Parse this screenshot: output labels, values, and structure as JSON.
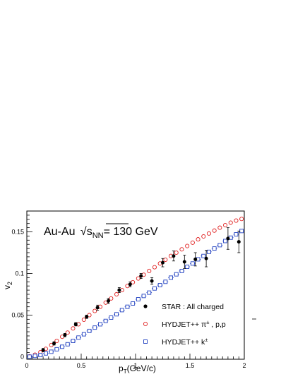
{
  "chart_data": {
    "type": "scatter",
    "title": "Au-Au √s_NN= 130 GeV",
    "title_parts": {
      "system": "Au-Au",
      "sqrt": "√",
      "s": "s",
      "sub": "NN",
      "rest": "= 130 GeV"
    },
    "xlabel": "p_T(GeV/c)",
    "xlabel_parts": {
      "p": "p",
      "sub": "T",
      "rest": "(GeV/c)"
    },
    "ylabel": "v_2",
    "ylabel_parts": {
      "v": "v",
      "sub": "2"
    },
    "xlim": [
      0,
      2
    ],
    "ylim": [
      -0.003,
      0.175
    ],
    "x_ticks": [
      {
        "value": 0,
        "label": "0"
      },
      {
        "value": 0.5,
        "label": "0.5"
      },
      {
        "value": 1,
        "label": "1"
      },
      {
        "value": 1.5,
        "label": "1.5"
      },
      {
        "value": 2,
        "label": "2"
      }
    ],
    "y_ticks": [
      {
        "value": 0,
        "label": "0"
      },
      {
        "value": 0.05,
        "label": "0.05"
      },
      {
        "value": 0.1,
        "label": "0.1"
      },
      {
        "value": 0.15,
        "label": "0.15"
      }
    ],
    "legend_position": "bottom-right",
    "series": [
      {
        "name": "STAR : All charged",
        "marker": "filled-circle",
        "color": "#000000",
        "x": [
          0.15,
          0.25,
          0.35,
          0.45,
          0.55,
          0.65,
          0.75,
          0.85,
          0.95,
          1.05,
          1.15,
          1.25,
          1.35,
          1.45,
          1.55,
          1.65,
          1.85,
          1.95
        ],
        "y": [
          0.008,
          0.016,
          0.026,
          0.039,
          0.048,
          0.059,
          0.067,
          0.08,
          0.087,
          0.097,
          0.091,
          0.113,
          0.121,
          0.114,
          0.117,
          0.118,
          0.142,
          0.138
        ],
        "err": [
          0.002,
          0.002,
          0.002,
          0.002,
          0.002,
          0.003,
          0.003,
          0.003,
          0.003,
          0.003,
          0.004,
          0.005,
          0.006,
          0.008,
          0.008,
          0.01,
          0.013,
          0.013
        ]
      },
      {
        "name_parts": {
          "base": "HYDJET++ π",
          "sup": "±",
          "rest": " , p,",
          "pbar": "p"
        },
        "marker": "open-circle",
        "color": "#e02020",
        "x": [
          0.025,
          0.075,
          0.125,
          0.175,
          0.225,
          0.275,
          0.325,
          0.375,
          0.425,
          0.475,
          0.525,
          0.575,
          0.625,
          0.675,
          0.725,
          0.775,
          0.825,
          0.875,
          0.925,
          0.975,
          1.025,
          1.075,
          1.125,
          1.175,
          1.225,
          1.275,
          1.325,
          1.375,
          1.425,
          1.475,
          1.525,
          1.575,
          1.625,
          1.675,
          1.725,
          1.775,
          1.825,
          1.875,
          1.925,
          1.975
        ],
        "y": [
          0.0005,
          0.0025,
          0.0055,
          0.0095,
          0.014,
          0.019,
          0.024,
          0.029,
          0.034,
          0.039,
          0.0445,
          0.05,
          0.055,
          0.06,
          0.065,
          0.07,
          0.075,
          0.08,
          0.085,
          0.0895,
          0.094,
          0.0985,
          0.103,
          0.1075,
          0.112,
          0.1165,
          0.121,
          0.125,
          0.129,
          0.133,
          0.137,
          0.141,
          0.1445,
          0.148,
          0.1515,
          0.155,
          0.158,
          0.161,
          0.1635,
          0.1655
        ]
      },
      {
        "name_parts": {
          "base": "HYDJET++ k",
          "sup": "±"
        },
        "marker": "open-square",
        "color": "#2040c0",
        "x": [
          0.025,
          0.075,
          0.125,
          0.175,
          0.225,
          0.275,
          0.325,
          0.375,
          0.425,
          0.475,
          0.525,
          0.575,
          0.625,
          0.675,
          0.725,
          0.775,
          0.825,
          0.875,
          0.925,
          0.975,
          1.025,
          1.075,
          1.125,
          1.175,
          1.225,
          1.275,
          1.325,
          1.375,
          1.425,
          1.475,
          1.525,
          1.575,
          1.625,
          1.675,
          1.725,
          1.775,
          1.825,
          1.875,
          1.925,
          1.975
        ],
        "y": [
          0.0001,
          0.001,
          0.002,
          0.004,
          0.006,
          0.009,
          0.012,
          0.015,
          0.019,
          0.023,
          0.027,
          0.031,
          0.035,
          0.039,
          0.043,
          0.047,
          0.051,
          0.056,
          0.06,
          0.064,
          0.069,
          0.073,
          0.077,
          0.082,
          0.086,
          0.09,
          0.095,
          0.099,
          0.103,
          0.108,
          0.112,
          0.117,
          0.121,
          0.126,
          0.13,
          0.134,
          0.139,
          0.143,
          0.147,
          0.151
        ],
        "xerr": 0.025
      }
    ]
  }
}
